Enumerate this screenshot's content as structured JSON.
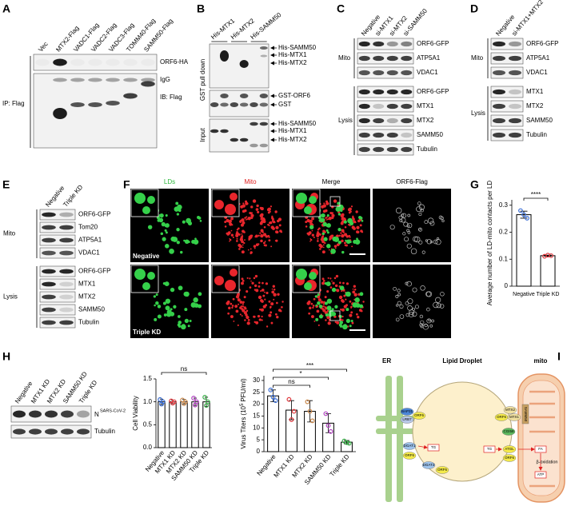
{
  "figure": {
    "A": {
      "label": "A",
      "lanes": [
        "Vec",
        "MTX2-Flag",
        "VADC1-Flag",
        "VADC2-Flag",
        "VADC3-Flag",
        "TOMM40-Flag",
        "SAMM50-Flag"
      ],
      "bands": [
        "ORF6-HA",
        "IgG",
        "IB: Flag"
      ],
      "group": "IP: Flag"
    },
    "B": {
      "label": "B",
      "lanes": [
        "His-MTX1",
        "His-MTX2",
        "His-SAMM50"
      ],
      "pulldown": {
        "label": "GST pull down",
        "bands": [
          "His-SAMM50",
          "His-MTX1",
          "His-MTX2",
          "GST-ORF6",
          "GST"
        ]
      },
      "input": {
        "label": "Input",
        "bands": [
          "His-SAMM50",
          "His-MTX1",
          "His-MTX2"
        ]
      }
    },
    "C": {
      "label": "C",
      "lanes": [
        "Negative",
        "si-MTX1",
        "si-MTX2",
        "si-SAMM50"
      ],
      "mito": {
        "label": "Mito",
        "bands": [
          "ORF6-GFP",
          "ATP5A1",
          "VDAC1"
        ]
      },
      "lysis": {
        "label": "Lysis",
        "bands": [
          "ORF6-GFP",
          "MTX1",
          "MTX2",
          "SAMM50",
          "Tubulin"
        ]
      }
    },
    "D": {
      "label": "D",
      "lanes": [
        "Negative",
        "si-MTX1+MTX2"
      ],
      "mito": {
        "label": "Mito",
        "bands": [
          "ORF6-GFP",
          "ATP5A1",
          "VDAC1"
        ]
      },
      "lysis": {
        "label": "Lysis",
        "bands": [
          "MTX1",
          "MTX2",
          "SAMM50",
          "Tubulin"
        ]
      }
    },
    "E": {
      "label": "E",
      "lanes": [
        "Negative",
        "Triple KD"
      ],
      "mito": {
        "label": "Mito",
        "bands": [
          "ORF6-GFP",
          "Tom20",
          "ATP5A1",
          "VDAC1"
        ]
      },
      "lysis": {
        "label": "Lysis",
        "bands": [
          "ORF6-GFP",
          "MTX1",
          "MTX2",
          "SAMM50",
          "Tubulin"
        ]
      }
    },
    "F": {
      "label": "F",
      "channels": [
        "LDs",
        "Mito",
        "Merge",
        "ORF6-Flag"
      ],
      "conditions": [
        "Negative",
        "Triple KD"
      ]
    },
    "G": {
      "label": "G"
    },
    "H": {
      "label": "H",
      "lanes": [
        "Negative",
        "MTX1 KD",
        "MTX2 KD",
        "SAMM50 KD",
        "Triple KD"
      ],
      "bands": [
        {
          "name": "N",
          "superscript": "SARS-CoV-2"
        },
        {
          "name": "Tubulin"
        }
      ]
    },
    "I": {
      "label": "I",
      "regions": [
        "ER",
        "Lipid Droplet",
        "mito"
      ],
      "nodes": [
        "BAP31",
        "LRB7",
        "ORF6",
        "DGAT1",
        "TG",
        "ORF6",
        "DGAT2",
        "ORF6",
        "MTX2",
        "ORF6",
        "MTX1",
        "SAMM50",
        "CGI58",
        "ATGL",
        "ORF6",
        "TG",
        "FA",
        "β-oxidation",
        "ATP"
      ]
    }
  },
  "chart_data": [
    {
      "type": "bar",
      "y_label": "Average number of LD-mito contacts per LD",
      "categories": [
        "Negative",
        "Triple KD"
      ],
      "values": [
        0.265,
        0.113
      ],
      "errors": [
        0.013,
        0.002
      ],
      "points": [
        [
          0.28,
          0.265,
          0.252
        ],
        [
          0.111,
          0.115,
          0.113
        ]
      ],
      "colors": [
        "#3b6fd6",
        "#e0393e"
      ],
      "ylim": [
        0,
        0.32
      ],
      "yticks": [
        0,
        0.1,
        0.2,
        0.3
      ],
      "annotations": [
        "****"
      ]
    },
    {
      "type": "bar",
      "y_label": "Cell Viability",
      "categories": [
        "Negative",
        "MTX1 KD",
        "MTX2 KD",
        "SAMM50 KD",
        "Triple KD"
      ],
      "values": [
        1,
        1,
        1,
        1,
        1
      ],
      "errors": [
        0.06,
        0.04,
        0.05,
        0.08,
        0.1
      ],
      "points": [
        [
          1.05,
          0.95,
          1.0
        ],
        [
          1.02,
          0.97,
          1.0
        ],
        [
          1.04,
          0.96,
          1.0
        ],
        [
          1.08,
          0.93,
          1.0
        ],
        [
          1.1,
          0.92,
          1.0
        ]
      ],
      "colors": [
        "#3b6fd6",
        "#e0393e",
        "#c8874a",
        "#b040c0",
        "#3cb04a"
      ],
      "ylim": [
        0,
        1.5
      ],
      "yticks": [
        {
          "value": 0,
          "label": "0.0"
        },
        {
          "value": 0.5,
          "label": "0.5"
        },
        {
          "value": 1,
          "label": "1.0"
        },
        {
          "value": 1.5,
          "label": "1.5"
        }
      ],
      "annotations": [
        "ns"
      ]
    },
    {
      "type": "bar",
      "y_label": {
        "text": "Virus Titers (10",
        "superscript": "5",
        "suffix": "PFU/ml)"
      },
      "categories": [
        "Negative",
        "MTX1 KD",
        "MTX2 KD",
        "SAMM50 KD",
        "Triple KD"
      ],
      "values": [
        23.5,
        17.5,
        17,
        12,
        4
      ],
      "errors": [
        2.5,
        4,
        4.5,
        4,
        0.7
      ],
      "points": [
        [
          26,
          23,
          21.5
        ],
        [
          22,
          13.5,
          17
        ],
        [
          21,
          17,
          13
        ],
        [
          16,
          11,
          8.5
        ],
        [
          4.5,
          3.8,
          3.5
        ]
      ],
      "colors": [
        "#3b6fd6",
        "#e0393e",
        "#c8874a",
        "#b040c0",
        "#3cb04a"
      ],
      "ylim": [
        0,
        32
      ],
      "yticks": [
        0,
        5,
        10,
        15,
        20,
        25,
        30
      ],
      "annotations": [
        "ns",
        "*",
        "***"
      ]
    }
  ]
}
